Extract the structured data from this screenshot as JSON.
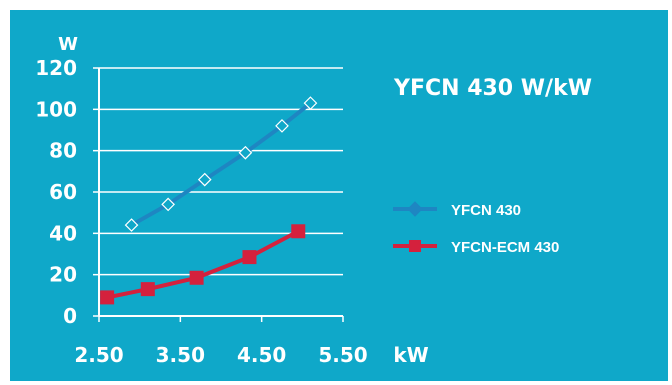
{
  "chart_data": {
    "type": "line",
    "title": "YFCN 430 W/kW",
    "xlabel": "kW",
    "ylabel": "W",
    "xlim": [
      2.5,
      5.5
    ],
    "ylim": [
      0,
      120
    ],
    "xticks": [
      "2.50",
      "3.50",
      "4.50",
      "5.50"
    ],
    "yticks": [
      "0",
      "20",
      "40",
      "60",
      "80",
      "100",
      "120"
    ],
    "grid": "horizontal",
    "legend_position": "right",
    "series": [
      {
        "name": "YFCN 430",
        "color": "#1e86c2",
        "marker": "diamond-open",
        "x": [
          2.9,
          3.35,
          3.8,
          4.3,
          4.75,
          5.1
        ],
        "y": [
          44,
          54,
          66,
          79,
          92,
          103
        ]
      },
      {
        "name": "YFCN-ECM 430",
        "color": "#d4213d",
        "marker": "square",
        "x": [
          2.6,
          3.1,
          3.7,
          4.35,
          4.95
        ],
        "y": [
          9,
          13,
          18.5,
          28.5,
          41
        ]
      }
    ]
  }
}
